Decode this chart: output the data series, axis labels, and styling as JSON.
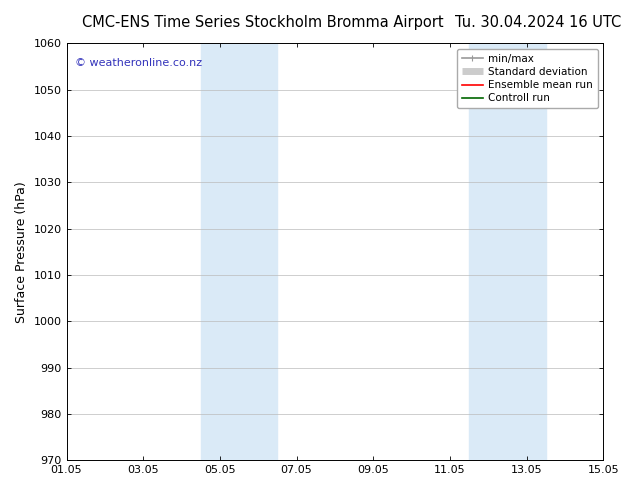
{
  "title_left": "CMC-ENS Time Series Stockholm Bromma Airport",
  "title_right": "Tu. 30.04.2024 16 UTC",
  "ylabel": "Surface Pressure (hPa)",
  "ylim": [
    970,
    1060
  ],
  "yticks": [
    970,
    980,
    990,
    1000,
    1010,
    1020,
    1030,
    1040,
    1050,
    1060
  ],
  "xtick_labels": [
    "01.05",
    "03.05",
    "05.05",
    "07.05",
    "09.05",
    "11.05",
    "13.05",
    "15.05"
  ],
  "xtick_values": [
    0,
    2,
    4,
    6,
    8,
    10,
    12,
    14
  ],
  "xlim": [
    0,
    14
  ],
  "shaded_bands": [
    {
      "x_start": 3.5,
      "x_end": 5.5
    },
    {
      "x_start": 10.5,
      "x_end": 12.5
    }
  ],
  "shaded_color": "#daeaf7",
  "background_color": "#ffffff",
  "watermark_text": "© weatheronline.co.nz",
  "watermark_color": "#3333bb",
  "watermark_fontsize": 8,
  "legend_items": [
    {
      "label": "min/max",
      "color": "#999999",
      "linewidth": 1.2,
      "style": "minmax"
    },
    {
      "label": "Standard deviation",
      "color": "#cccccc",
      "linewidth": 5,
      "style": "band"
    },
    {
      "label": "Ensemble mean run",
      "color": "#ff0000",
      "linewidth": 1.2,
      "style": "line"
    },
    {
      "label": "Controll run",
      "color": "#006600",
      "linewidth": 1.2,
      "style": "line"
    }
  ],
  "title_fontsize": 10.5,
  "ylabel_fontsize": 9,
  "tick_fontsize": 8,
  "legend_fontsize": 7.5,
  "grid_color": "#bbbbbb",
  "spine_color": "#000000"
}
